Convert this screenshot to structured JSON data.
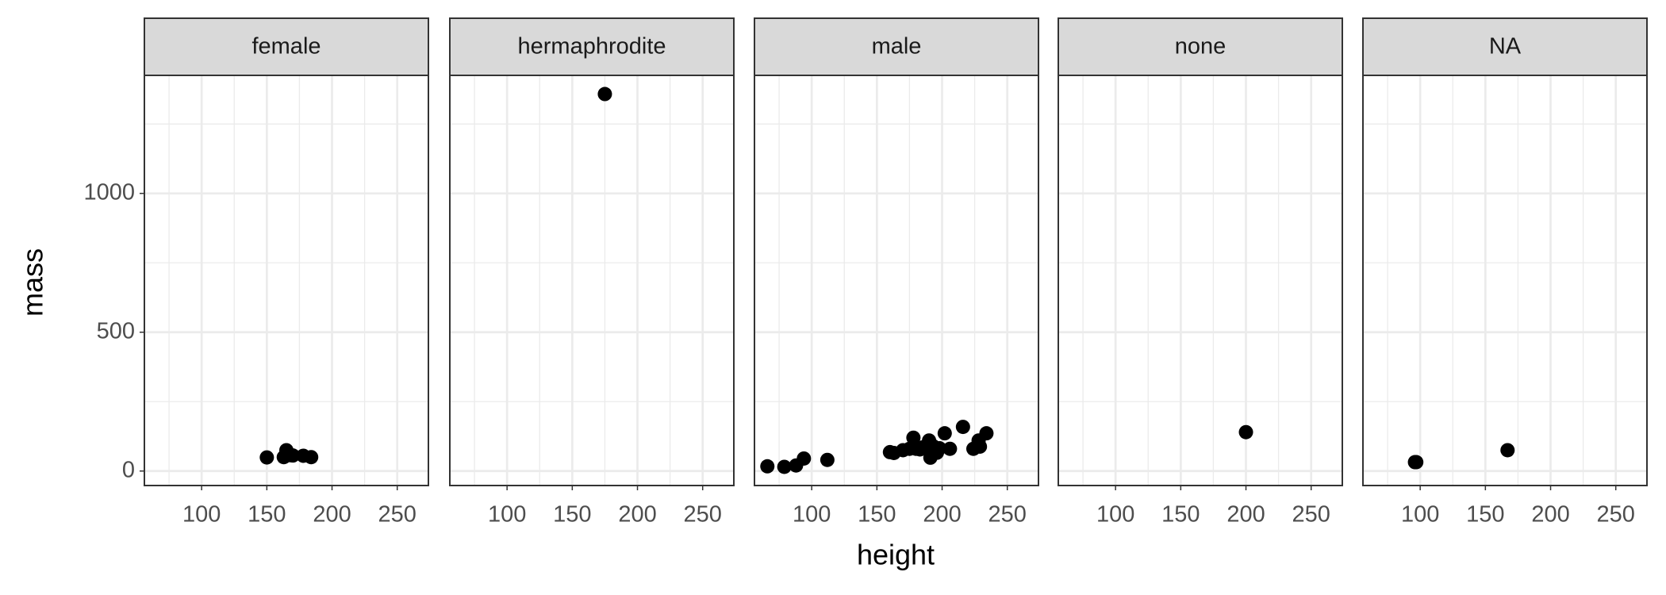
{
  "xlabel": "height",
  "ylabel": "mass",
  "chart_data": [
    {
      "type": "scatter",
      "title": "female",
      "color": "#000000",
      "x": [
        150,
        165,
        163,
        170,
        178,
        184,
        168
      ],
      "values": [
        49,
        75,
        50,
        56,
        55,
        50,
        57
      ],
      "xlim": [
        56.1,
        273.9
      ],
      "ylim": [
        -52.2,
        1425.2
      ],
      "xticks": [
        100,
        150,
        200,
        250
      ],
      "yticks": [
        0,
        500,
        1000
      ]
    },
    {
      "type": "scatter",
      "title": "hermaphrodite",
      "color": "#000000",
      "x": [
        175
      ],
      "values": [
        1358
      ],
      "xlim": [
        56.1,
        273.9
      ],
      "ylim": [
        -52.2,
        1425.2
      ],
      "xticks": [
        100,
        150,
        200,
        250
      ],
      "yticks": [
        0,
        500,
        1000
      ]
    },
    {
      "type": "scatter",
      "title": "male",
      "color": "#000000",
      "x": [
        66,
        79,
        88,
        94,
        112,
        160,
        163,
        170,
        175,
        178,
        180,
        183,
        185,
        188,
        190,
        191,
        193,
        196,
        198,
        202,
        206,
        216,
        224,
        228,
        229,
        234
      ],
      "values": [
        17,
        15,
        20,
        45,
        40,
        68,
        65,
        75,
        80,
        120,
        80,
        78,
        85,
        84,
        110,
        48,
        90,
        66,
        82,
        136,
        80,
        159,
        80,
        110,
        88,
        136
      ],
      "xlim": [
        56.1,
        273.9
      ],
      "ylim": [
        -52.2,
        1425.2
      ],
      "xticks": [
        100,
        150,
        200,
        250
      ],
      "yticks": [
        0,
        500,
        1000
      ]
    },
    {
      "type": "scatter",
      "title": "none",
      "color": "#000000",
      "x": [
        200
      ],
      "values": [
        140
      ],
      "xlim": [
        56.1,
        273.9
      ],
      "ylim": [
        -52.2,
        1425.2
      ],
      "xticks": [
        100,
        150,
        200,
        250
      ],
      "yticks": [
        0,
        500,
        1000
      ]
    },
    {
      "type": "scatter",
      "title": "NA",
      "color": "#000000",
      "x": [
        96,
        97,
        167
      ],
      "values": [
        32,
        32,
        75
      ],
      "xlim": [
        56.1,
        273.9
      ],
      "ylim": [
        -52.2,
        1425.2
      ],
      "xticks": [
        100,
        150,
        200,
        250
      ],
      "yticks": [
        0,
        500,
        1000
      ]
    }
  ]
}
